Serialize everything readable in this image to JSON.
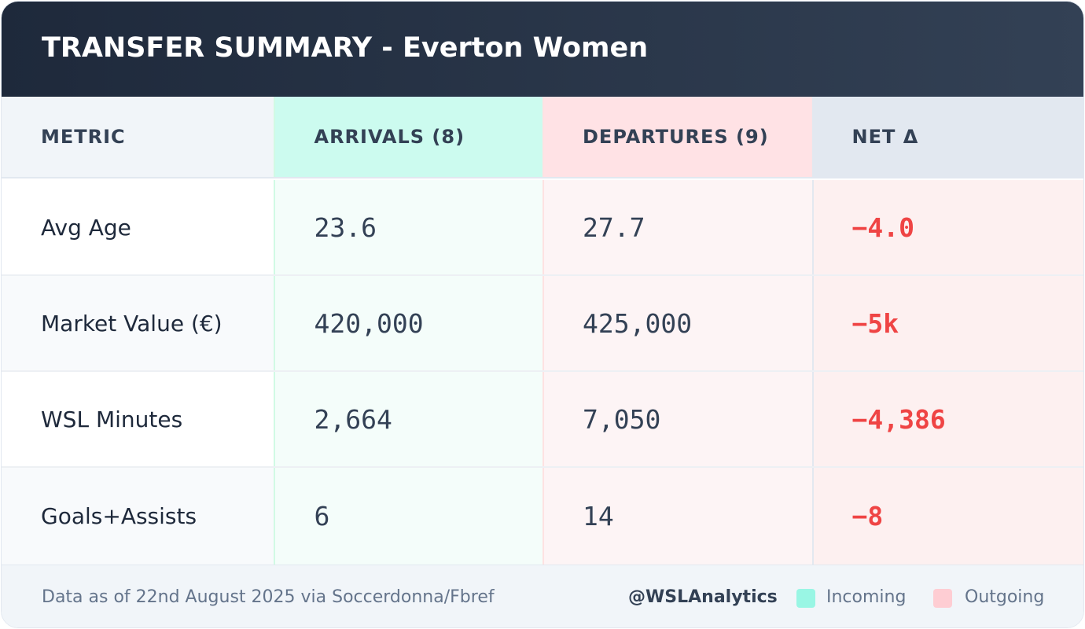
{
  "header": {
    "title": "TRANSFER SUMMARY - Everton Women"
  },
  "table": {
    "columns": [
      "METRIC",
      "ARRIVALS (8)",
      "DEPARTURES (9)",
      "NET Δ"
    ],
    "rows": [
      {
        "metric": "Avg Age",
        "arrivals": "23.6",
        "departures": "27.7",
        "net": "−4.0"
      },
      {
        "metric": "Market Value (€)",
        "arrivals": "420,000",
        "departures": "425,000",
        "net": "−5k"
      },
      {
        "metric": "WSL Minutes",
        "arrivals": "2,664",
        "departures": "7,050",
        "net": "−4,386"
      },
      {
        "metric": "Goals+Assists",
        "arrivals": "6",
        "departures": "14",
        "net": "−8"
      }
    ]
  },
  "footer": {
    "source": "Data as of 22nd August 2025 via Soccerdonna/Fbref",
    "handle": "@WSLAnalytics",
    "legend": [
      {
        "label": "Incoming",
        "color": "#99f6e4"
      },
      {
        "label": "Outgoing",
        "color": "#fecdd3"
      }
    ]
  },
  "colors": {
    "header_bg": "#1e293b",
    "arrivals_accent": "#ccfbef",
    "departures_accent": "#ffe2e5",
    "negative": "#ef4444"
  }
}
